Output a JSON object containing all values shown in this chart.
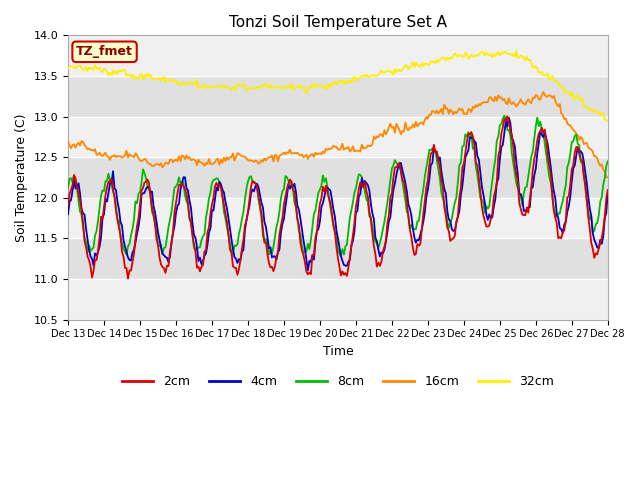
{
  "title": "Tonzi Soil Temperature Set A",
  "xlabel": "Time",
  "ylabel": "Soil Temperature (C)",
  "ylim": [
    10.5,
    14.0
  ],
  "background_color": "#ffffff",
  "plot_bg_color": "#e0e0e0",
  "plot_bg_light": "#f0f0f0",
  "series_colors": {
    "2cm": "#dd0000",
    "4cm": "#0000cc",
    "8cm": "#00bb00",
    "16cm": "#ff8800",
    "32cm": "#ffee00"
  },
  "annotation_text": "TZ_fmet",
  "annotation_bg": "#ffffcc",
  "annotation_border": "#cc0000",
  "annotation_text_color": "#880000",
  "tick_labels": [
    "Dec 13",
    "Dec 14",
    "Dec 15",
    "Dec 16",
    "Dec 17",
    "Dec 18",
    "Dec 19",
    "Dec 20",
    "Dec 21",
    "Dec 22",
    "Dec 23",
    "Dec 24",
    "Dec 25",
    "Dec 26",
    "Dec 27",
    "Dec 28"
  ],
  "yticks": [
    10.5,
    11.0,
    11.5,
    12.0,
    12.5,
    13.0,
    13.5,
    14.0
  ]
}
